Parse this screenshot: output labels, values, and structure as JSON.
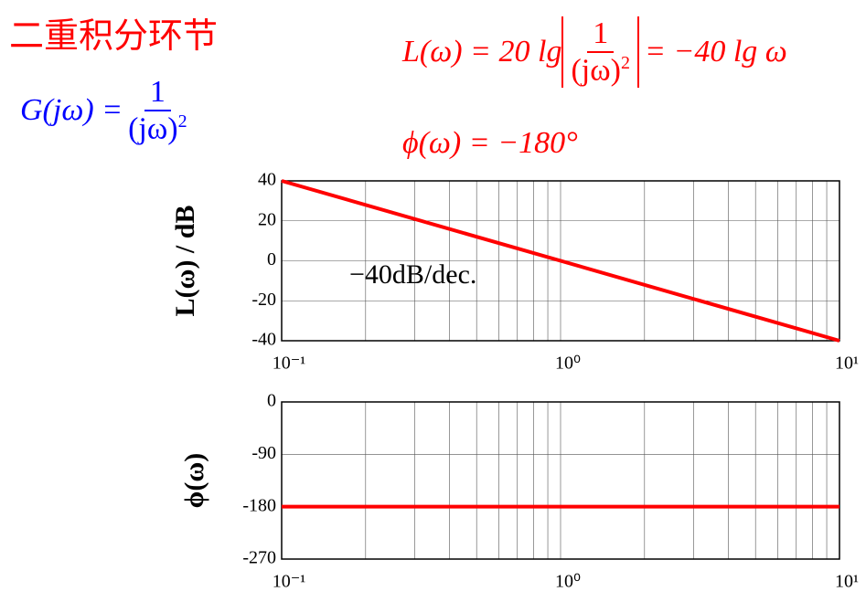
{
  "title": "二重积分环节",
  "formulas": {
    "transfer": {
      "lhs": "G(jω) =",
      "num": "1",
      "den": "(jω)",
      "exp": "2"
    },
    "magnitude": {
      "lhs": "L(ω) = 20 lg",
      "num": "1",
      "den": "(jω)",
      "exp": "2",
      "rhs": "= −40 lg ω"
    },
    "phase": "ϕ(ω) = −180°"
  },
  "chart_data": [
    {
      "type": "line",
      "ylabel": "L(ω) / dB",
      "annotation": "−40dB/dec.",
      "log_x": true,
      "grid": true,
      "x": [
        0.1,
        10
      ],
      "series": [
        {
          "name": "L(ω)",
          "color": "#ff0000",
          "values": [
            40,
            -40
          ]
        }
      ],
      "xlim": [
        0.1,
        10
      ],
      "xticks": [
        {
          "value": 0.1,
          "label": "10⁻¹"
        },
        {
          "value": 1,
          "label": "10⁰"
        },
        {
          "value": 10,
          "label": "10¹"
        }
      ],
      "xminor": [
        0.2,
        0.3,
        0.4,
        0.5,
        0.6,
        0.7,
        0.8,
        0.9,
        2,
        3,
        4,
        5,
        6,
        7,
        8,
        9
      ],
      "ylim": [
        -40,
        40
      ],
      "yticks": [
        -40,
        -20,
        0,
        20,
        40
      ]
    },
    {
      "type": "line",
      "ylabel": "ϕ(ω)",
      "log_x": true,
      "grid": true,
      "x": [
        0.1,
        10
      ],
      "series": [
        {
          "name": "ϕ(ω)",
          "color": "#ff0000",
          "values": [
            -180,
            -180
          ]
        }
      ],
      "xlim": [
        0.1,
        10
      ],
      "xticks": [
        {
          "value": 0.1,
          "label": "10⁻¹"
        },
        {
          "value": 1,
          "label": "10⁰"
        },
        {
          "value": 10,
          "label": "10¹"
        }
      ],
      "xminor": [
        0.2,
        0.3,
        0.4,
        0.5,
        0.6,
        0.7,
        0.8,
        0.9,
        2,
        3,
        4,
        5,
        6,
        7,
        8,
        9
      ],
      "ylim": [
        -270,
        0
      ],
      "yticks": [
        -270,
        -180,
        -90,
        0
      ]
    }
  ]
}
